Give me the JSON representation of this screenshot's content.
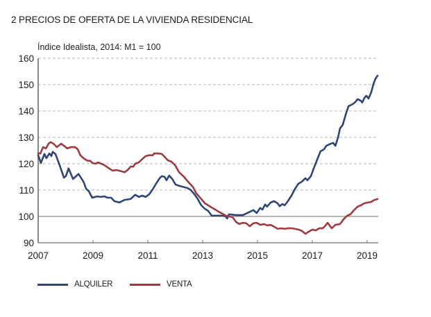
{
  "chart_data": {
    "type": "line",
    "title": "2  PRECIOS DE OFERTA DE LA VIVIENDA RESIDENCIAL",
    "subtitle": "Índice Idealista, 2014: M1 = 100",
    "xlabel": "",
    "ylabel": "",
    "xlim": [
      2007,
      2019.6
    ],
    "ylim": [
      90,
      160
    ],
    "x_ticks": [
      2007,
      2009,
      2011,
      2013,
      2015,
      2017,
      2019
    ],
    "x_tick_labels": [
      "2007",
      "2009",
      "2011",
      "2013",
      "2015",
      "2017",
      "2019"
    ],
    "y_ticks": [
      90,
      100,
      110,
      120,
      130,
      140,
      150,
      160
    ],
    "y_tick_labels": [
      "90",
      "100",
      "110",
      "120",
      "130",
      "140",
      "150",
      "160"
    ],
    "grid": "horizontal dashed",
    "reference_line": 100,
    "legend_position": "bottom-left",
    "series": [
      {
        "name": "ALQUILER",
        "color": "#2e4478",
        "points": [
          [
            2007.0,
            123.2
          ],
          [
            2007.1,
            120.3
          ],
          [
            2007.23,
            123.7
          ],
          [
            2007.3,
            122.1
          ],
          [
            2007.41,
            123.9
          ],
          [
            2007.48,
            122.9
          ],
          [
            2007.53,
            124.5
          ],
          [
            2007.63,
            123.7
          ],
          [
            2007.78,
            119.5
          ],
          [
            2007.94,
            114.7
          ],
          [
            2008.01,
            115.3
          ],
          [
            2008.11,
            118.2
          ],
          [
            2008.27,
            114.2
          ],
          [
            2008.47,
            116.1
          ],
          [
            2008.65,
            113.2
          ],
          [
            2008.75,
            110.5
          ],
          [
            2008.85,
            109.5
          ],
          [
            2008.97,
            107.1
          ],
          [
            2009.15,
            107.6
          ],
          [
            2009.28,
            107.4
          ],
          [
            2009.41,
            107.6
          ],
          [
            2009.53,
            107.1
          ],
          [
            2009.66,
            107.1
          ],
          [
            2009.78,
            105.8
          ],
          [
            2009.96,
            105.3
          ],
          [
            2010.16,
            106.3
          ],
          [
            2010.37,
            106.6
          ],
          [
            2010.54,
            108.2
          ],
          [
            2010.67,
            107.4
          ],
          [
            2010.8,
            107.9
          ],
          [
            2010.92,
            107.4
          ],
          [
            2011.05,
            108.4
          ],
          [
            2011.18,
            110.3
          ],
          [
            2011.3,
            112.4
          ],
          [
            2011.43,
            114.5
          ],
          [
            2011.51,
            115.3
          ],
          [
            2011.61,
            115.0
          ],
          [
            2011.68,
            113.7
          ],
          [
            2011.78,
            115.5
          ],
          [
            2011.89,
            114.2
          ],
          [
            2012.01,
            112.1
          ],
          [
            2012.14,
            111.6
          ],
          [
            2012.32,
            111.1
          ],
          [
            2012.44,
            110.8
          ],
          [
            2012.57,
            110.0
          ],
          [
            2012.7,
            108.4
          ],
          [
            2012.82,
            106.6
          ],
          [
            2012.95,
            104.2
          ],
          [
            2013.08,
            102.9
          ],
          [
            2013.2,
            102.1
          ],
          [
            2013.33,
            100.3
          ],
          [
            2013.46,
            100.3
          ],
          [
            2013.71,
            100.3
          ],
          [
            2013.84,
            100.0
          ],
          [
            2013.89,
            99.2
          ],
          [
            2013.96,
            100.8
          ],
          [
            2014.22,
            100.5
          ],
          [
            2014.47,
            100.5
          ],
          [
            2014.59,
            101.1
          ],
          [
            2014.85,
            102.4
          ],
          [
            2014.97,
            101.3
          ],
          [
            2015.1,
            103.2
          ],
          [
            2015.18,
            102.6
          ],
          [
            2015.28,
            104.5
          ],
          [
            2015.35,
            103.7
          ],
          [
            2015.48,
            105.3
          ],
          [
            2015.61,
            105.8
          ],
          [
            2015.73,
            105.0
          ],
          [
            2015.81,
            103.9
          ],
          [
            2015.91,
            104.7
          ],
          [
            2015.99,
            104.2
          ],
          [
            2016.11,
            105.8
          ],
          [
            2016.24,
            107.9
          ],
          [
            2016.37,
            110.5
          ],
          [
            2016.49,
            112.4
          ],
          [
            2016.62,
            113.2
          ],
          [
            2016.75,
            114.5
          ],
          [
            2016.82,
            113.7
          ],
          [
            2016.95,
            115.3
          ],
          [
            2017.05,
            118.2
          ],
          [
            2017.18,
            121.6
          ],
          [
            2017.3,
            124.7
          ],
          [
            2017.43,
            125.5
          ],
          [
            2017.51,
            126.8
          ],
          [
            2017.63,
            127.4
          ],
          [
            2017.76,
            127.9
          ],
          [
            2017.84,
            126.8
          ],
          [
            2017.94,
            130.0
          ],
          [
            2018.01,
            133.4
          ],
          [
            2018.11,
            134.7
          ],
          [
            2018.22,
            138.7
          ],
          [
            2018.32,
            141.8
          ],
          [
            2018.47,
            142.6
          ],
          [
            2018.57,
            143.4
          ],
          [
            2018.65,
            144.5
          ],
          [
            2018.77,
            143.9
          ],
          [
            2018.82,
            143.2
          ],
          [
            2018.9,
            145.0
          ],
          [
            2018.97,
            145.8
          ],
          [
            2019.05,
            144.7
          ],
          [
            2019.15,
            147.1
          ],
          [
            2019.23,
            150.3
          ],
          [
            2019.3,
            152.1
          ],
          [
            2019.38,
            153.4
          ]
        ]
      },
      {
        "name": "VENTA",
        "color": "#9e3a3f",
        "points": [
          [
            2007.0,
            123.9
          ],
          [
            2007.08,
            123.9
          ],
          [
            2007.18,
            126.3
          ],
          [
            2007.28,
            125.8
          ],
          [
            2007.38,
            127.6
          ],
          [
            2007.46,
            128.2
          ],
          [
            2007.58,
            127.4
          ],
          [
            2007.68,
            126.3
          ],
          [
            2007.84,
            127.6
          ],
          [
            2007.94,
            126.8
          ],
          [
            2008.06,
            125.8
          ],
          [
            2008.19,
            126.3
          ],
          [
            2008.34,
            126.3
          ],
          [
            2008.44,
            125.5
          ],
          [
            2008.54,
            123.2
          ],
          [
            2008.65,
            122.1
          ],
          [
            2008.8,
            121.1
          ],
          [
            2008.9,
            121.1
          ],
          [
            2008.97,
            120.3
          ],
          [
            2009.1,
            120.0
          ],
          [
            2009.18,
            120.5
          ],
          [
            2009.3,
            120.0
          ],
          [
            2009.41,
            119.5
          ],
          [
            2009.56,
            118.4
          ],
          [
            2009.71,
            117.4
          ],
          [
            2009.86,
            117.6
          ],
          [
            2010.04,
            117.1
          ],
          [
            2010.16,
            116.8
          ],
          [
            2010.29,
            117.9
          ],
          [
            2010.37,
            118.9
          ],
          [
            2010.47,
            118.9
          ],
          [
            2010.54,
            120.0
          ],
          [
            2010.67,
            120.5
          ],
          [
            2010.8,
            121.8
          ],
          [
            2010.92,
            122.9
          ],
          [
            2011.05,
            123.2
          ],
          [
            2011.18,
            123.2
          ],
          [
            2011.23,
            123.9
          ],
          [
            2011.38,
            123.9
          ],
          [
            2011.51,
            123.7
          ],
          [
            2011.63,
            122.4
          ],
          [
            2011.73,
            121.3
          ],
          [
            2011.86,
            120.8
          ],
          [
            2011.99,
            119.5
          ],
          [
            2012.14,
            116.8
          ],
          [
            2012.32,
            115.0
          ],
          [
            2012.49,
            112.9
          ],
          [
            2012.65,
            111.1
          ],
          [
            2012.77,
            108.7
          ],
          [
            2012.95,
            106.6
          ],
          [
            2013.08,
            105.0
          ],
          [
            2013.2,
            104.2
          ],
          [
            2013.33,
            103.4
          ],
          [
            2013.46,
            102.6
          ],
          [
            2013.58,
            101.8
          ],
          [
            2013.71,
            101.1
          ],
          [
            2013.84,
            100.3
          ],
          [
            2013.96,
            100.0
          ],
          [
            2014.09,
            99.7
          ],
          [
            2014.22,
            97.9
          ],
          [
            2014.34,
            97.1
          ],
          [
            2014.47,
            97.6
          ],
          [
            2014.59,
            97.4
          ],
          [
            2014.72,
            96.3
          ],
          [
            2014.85,
            97.4
          ],
          [
            2014.97,
            97.6
          ],
          [
            2015.1,
            96.8
          ],
          [
            2015.23,
            97.1
          ],
          [
            2015.35,
            96.6
          ],
          [
            2015.48,
            96.8
          ],
          [
            2015.61,
            96.1
          ],
          [
            2015.73,
            95.3
          ],
          [
            2015.86,
            95.5
          ],
          [
            2015.99,
            95.3
          ],
          [
            2016.11,
            95.5
          ],
          [
            2016.24,
            95.5
          ],
          [
            2016.37,
            95.3
          ],
          [
            2016.49,
            95.0
          ],
          [
            2016.62,
            94.5
          ],
          [
            2016.75,
            93.4
          ],
          [
            2016.87,
            94.2
          ],
          [
            2017.0,
            95.0
          ],
          [
            2017.13,
            94.7
          ],
          [
            2017.25,
            95.5
          ],
          [
            2017.38,
            95.5
          ],
          [
            2017.46,
            96.3
          ],
          [
            2017.56,
            97.6
          ],
          [
            2017.66,
            96.1
          ],
          [
            2017.71,
            95.5
          ],
          [
            2017.84,
            96.8
          ],
          [
            2018.01,
            97.1
          ],
          [
            2018.14,
            98.9
          ],
          [
            2018.27,
            100.3
          ],
          [
            2018.39,
            100.8
          ],
          [
            2018.52,
            102.4
          ],
          [
            2018.65,
            103.7
          ],
          [
            2018.77,
            104.2
          ],
          [
            2018.9,
            105.0
          ],
          [
            2019.03,
            105.3
          ],
          [
            2019.15,
            105.5
          ],
          [
            2019.23,
            106.1
          ],
          [
            2019.38,
            106.6
          ]
        ]
      }
    ]
  }
}
